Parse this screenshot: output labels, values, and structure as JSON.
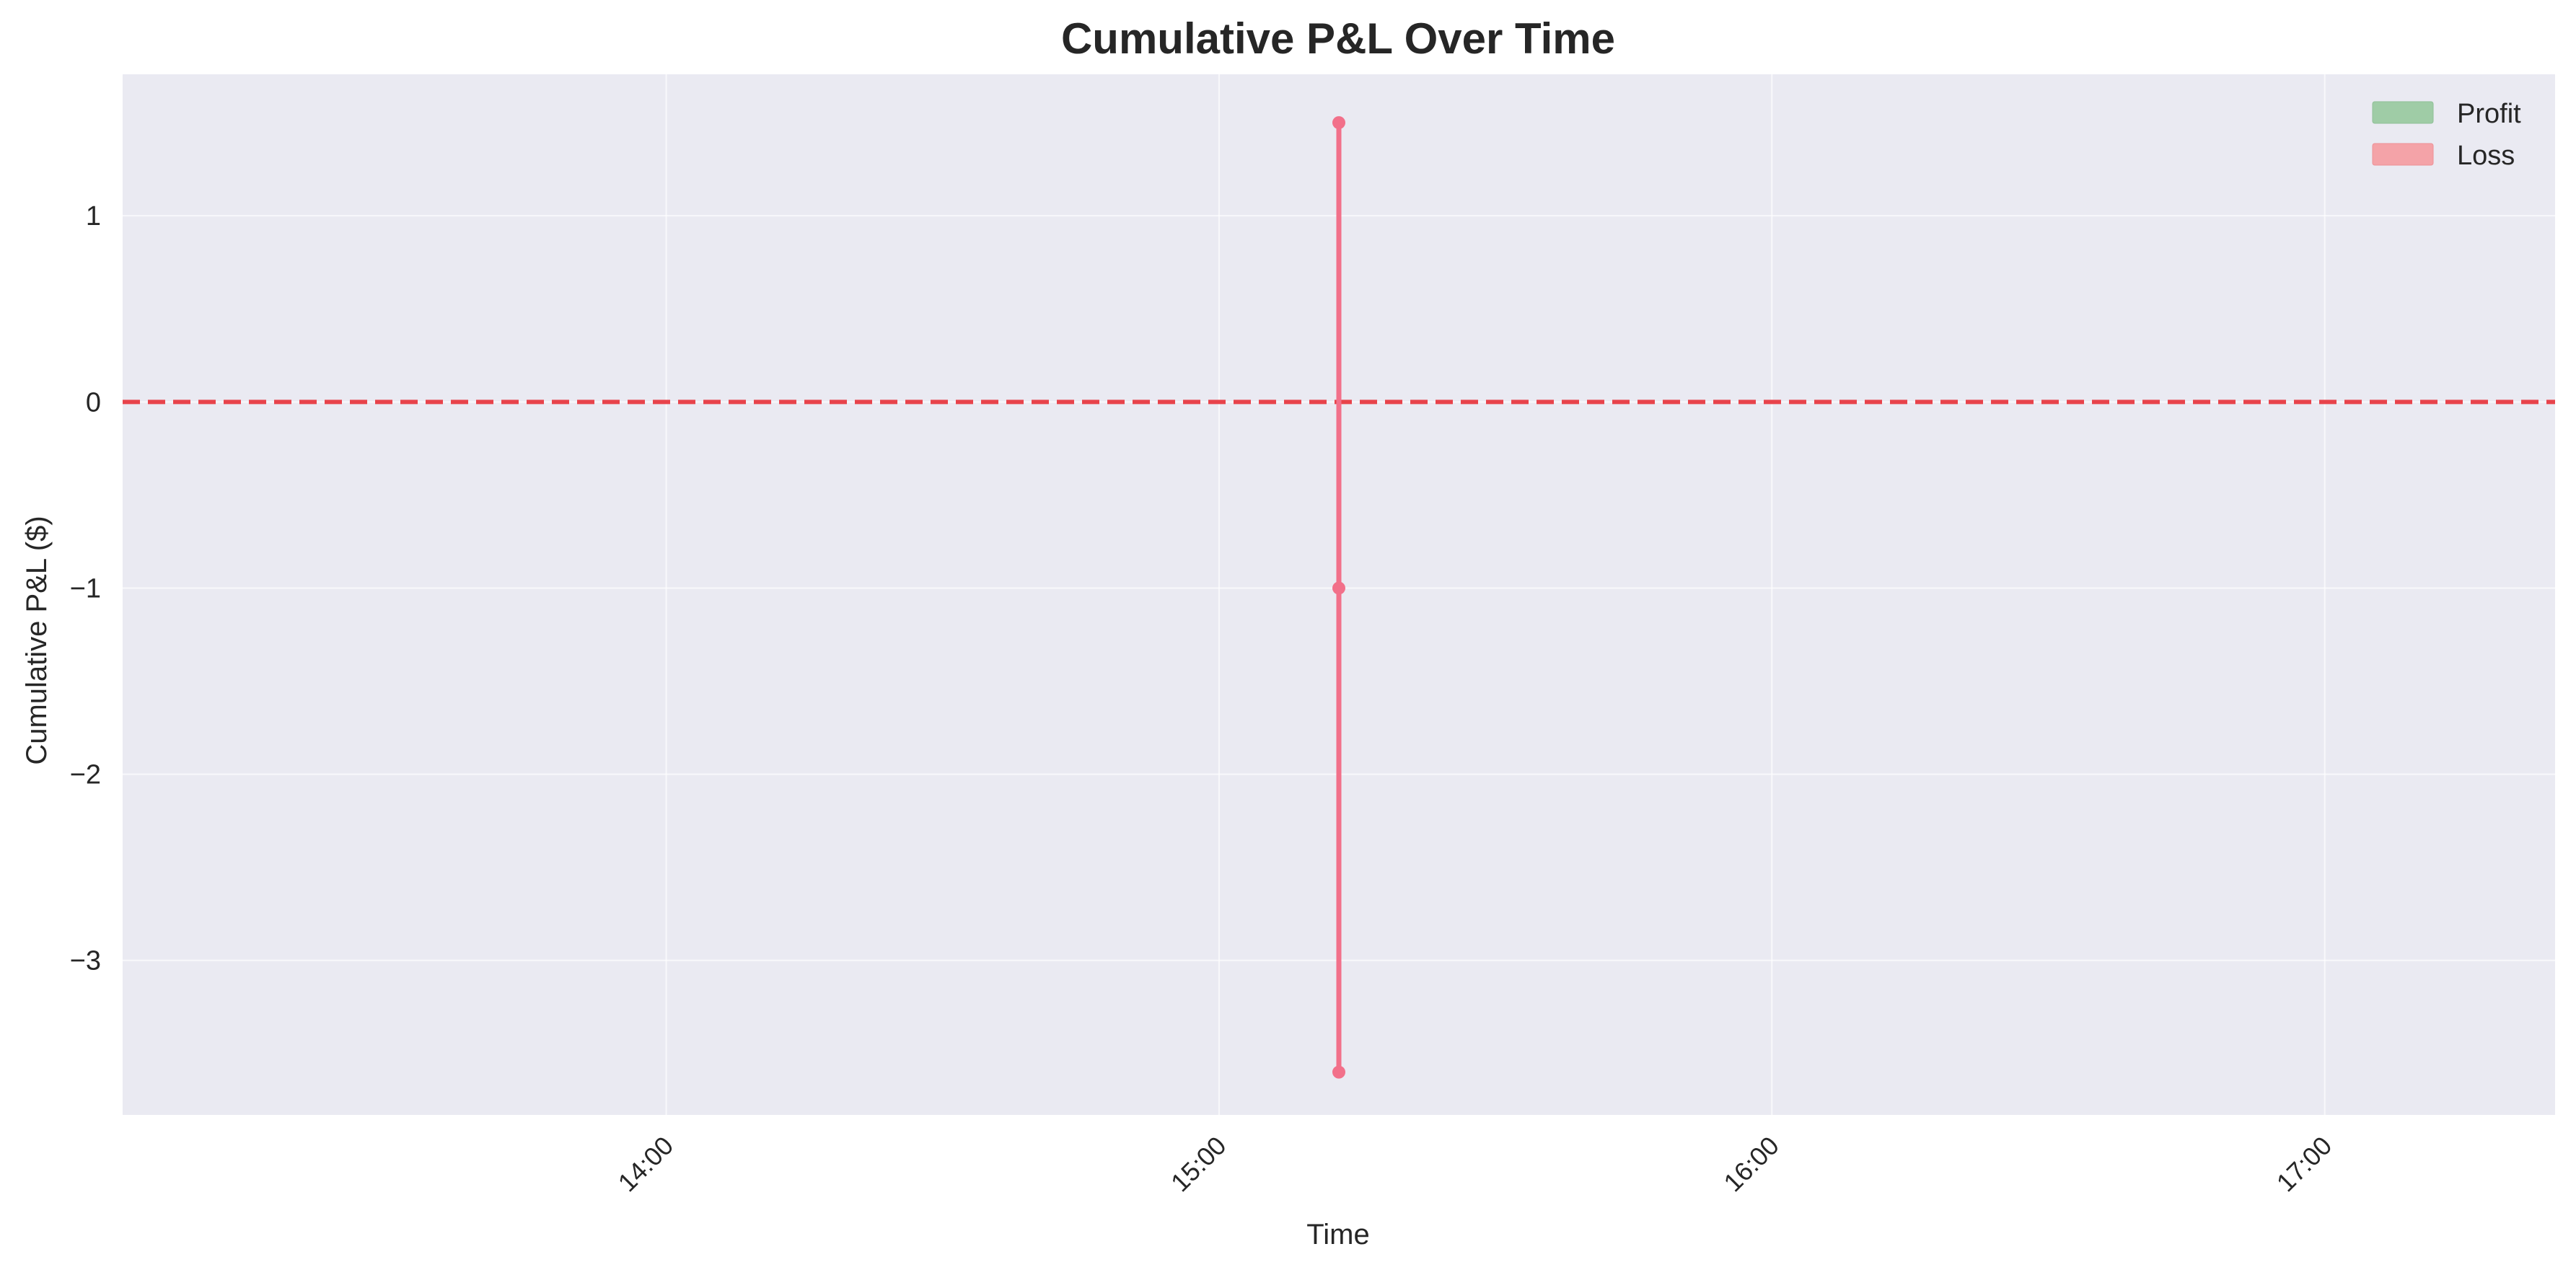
{
  "chart_data": {
    "type": "line",
    "title": "Cumulative P&L Over Time",
    "xlabel": "Time",
    "ylabel": "Cumulative P&L ($)",
    "x_ticks": [
      "14:00",
      "15:00",
      "16:00",
      "17:00"
    ],
    "x_range": [
      "13:01",
      "17:25"
    ],
    "y_ticks": [
      1,
      0,
      -1,
      -2,
      -3
    ],
    "y_tick_labels": [
      "1",
      "0",
      "−1",
      "−2",
      "−3"
    ],
    "ylim": [
      -3.83,
      1.76
    ],
    "series": [
      {
        "x": [
          "15:13",
          "15:13",
          "15:13"
        ],
        "y": [
          1.5,
          -1.0,
          -3.6
        ],
        "color": "#f2708a"
      }
    ],
    "reference_line": {
      "y": 0,
      "style": "dashed",
      "color": "#e8434b"
    },
    "legend": {
      "placement": "top-right",
      "entries": [
        {
          "label": "Profit",
          "color": "#9fcca6"
        },
        {
          "label": "Loss",
          "color": "#f4a3a8"
        }
      ]
    },
    "grid": true,
    "plot_background": "#eaeaf2"
  }
}
